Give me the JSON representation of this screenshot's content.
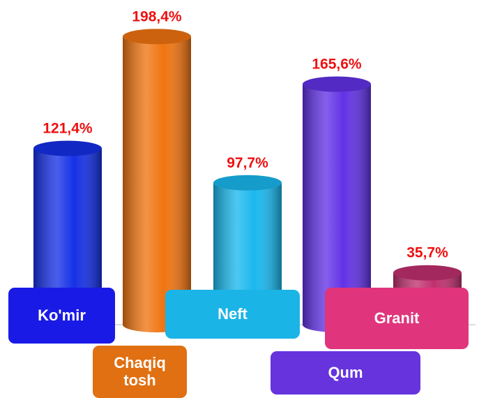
{
  "chart_data": {
    "type": "bar",
    "categories": [
      "Ko'mir",
      "Chaqiq tosh",
      "Neft",
      "Qum",
      "Granit"
    ],
    "values": [
      121.4,
      198.4,
      97.7,
      165.6,
      35.7
    ],
    "value_labels": [
      "121,4%",
      "198,4%",
      "97,7%",
      "165,6%",
      "35,7%"
    ],
    "colors": [
      "#1530e6",
      "#f07410",
      "#1ab8ee",
      "#6232e6",
      "#c0306e"
    ]
  }
}
